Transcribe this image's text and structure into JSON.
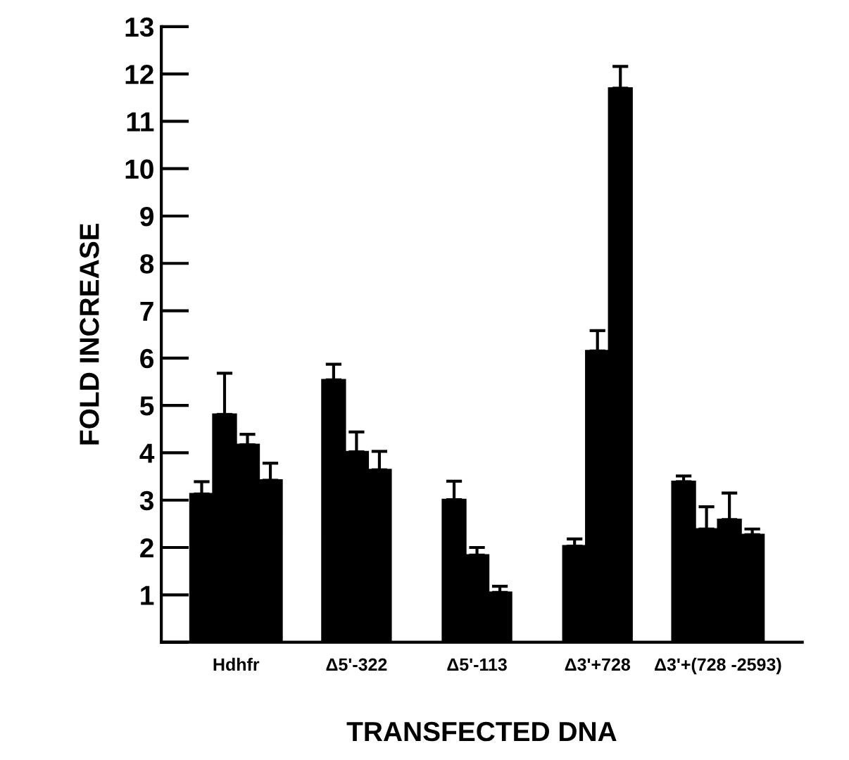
{
  "chart_data": {
    "type": "bar",
    "xlabel": "TRANSFECTED DNA",
    "ylabel": "FOLD INCREASE",
    "categories": [
      "Hdhfr",
      "Δ5'-322",
      "Δ5'-113",
      "Δ3'+728",
      "Δ3'+(728 -2593)"
    ],
    "series": [
      {
        "color": "#000000",
        "values": [
          3.13,
          5.54,
          3.01,
          2.03,
          3.39
        ],
        "errors": [
          [
            3.13,
            3.39
          ],
          [
            5.54,
            5.87
          ],
          [
            3.01,
            3.4
          ],
          [
            2.03,
            2.18
          ],
          [
            3.39,
            3.51
          ]
        ]
      },
      {
        "color": "#000000",
        "values": [
          4.81,
          4.02,
          1.84,
          6.15,
          2.39
        ],
        "errors": [
          [
            4.81,
            5.68
          ],
          [
            4.02,
            4.44
          ],
          [
            1.84,
            2.0
          ],
          [
            6.15,
            6.58
          ],
          [
            2.39,
            2.86
          ]
        ]
      },
      {
        "color": "#000000",
        "values": [
          4.17,
          3.64,
          1.05,
          11.7,
          2.59
        ],
        "errors": [
          [
            4.17,
            4.39
          ],
          [
            3.64,
            4.03
          ],
          [
            1.05,
            1.18
          ],
          [
            11.7,
            12.16
          ],
          [
            2.59,
            3.15
          ]
        ]
      },
      {
        "color": "#000000",
        "values": [
          3.42,
          null,
          null,
          null,
          2.27
        ],
        "errors": [
          [
            3.42,
            3.78
          ],
          null,
          null,
          null,
          [
            2.27,
            2.39
          ]
        ]
      }
    ],
    "ylim": [
      0,
      13
    ],
    "yticks": [
      {
        "value": 0,
        "label": null
      },
      1,
      2,
      3,
      4,
      5,
      6,
      7,
      8,
      9,
      10,
      11,
      12,
      13
    ],
    "grid": false,
    "legend": false
  }
}
